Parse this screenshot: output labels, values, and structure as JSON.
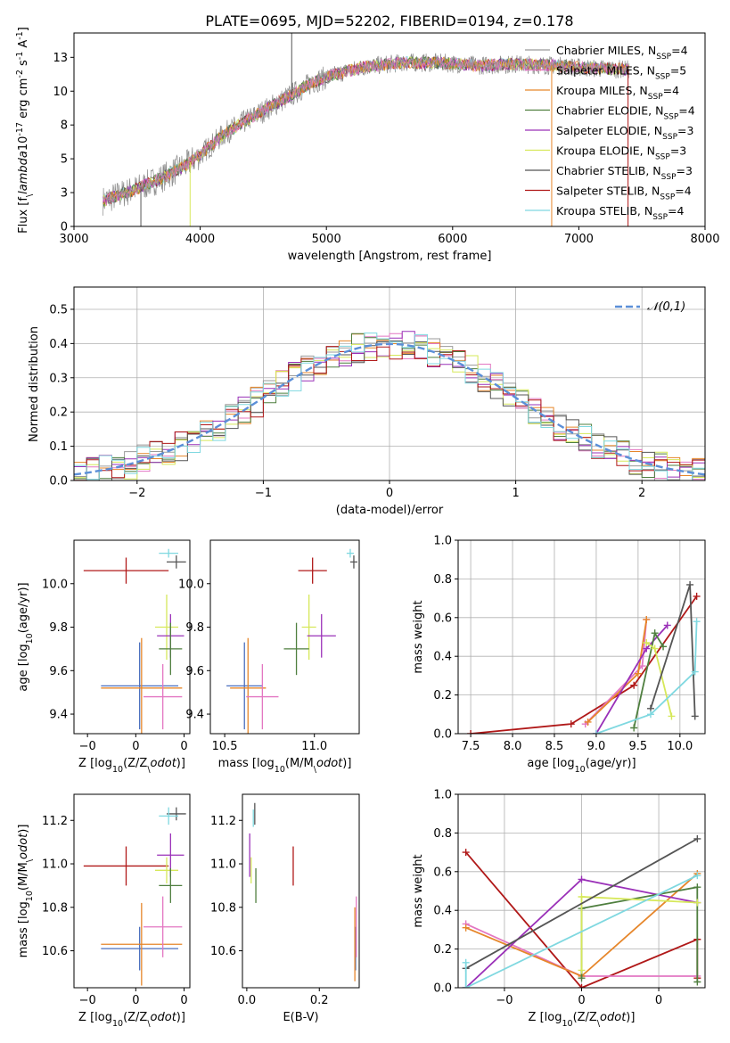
{
  "figure": {
    "title": "PLATE=0695, MJD=52202, FIBERID=0194, z=0.178"
  },
  "legend_spectrum": [
    {
      "name": "Chabrier MILES, N$_{SSP}$=4",
      "main": "Chabrier MILES, N",
      "sub": "SSP",
      "tail": "=4",
      "color": "#9a9a9a"
    },
    {
      "name": "Salpeter MILES, N$_{SSP}$=5",
      "main": "Salpeter MILES, N",
      "sub": "SSP",
      "tail": "=5",
      "color": "#e377c2"
    },
    {
      "name": "Kroupa MILES, N$_{SSP}$=4",
      "main": "Kroupa MILES, N",
      "sub": "SSP",
      "tail": "=4",
      "color": "#e6862a"
    },
    {
      "name": "Chabrier ELODIE, N$_{SSP}$=4",
      "main": "Chabrier ELODIE, N",
      "sub": "SSP",
      "tail": "=4",
      "color": "#4f7f3f"
    },
    {
      "name": "Salpeter ELODIE, N$_{SSP}$=3",
      "main": "Salpeter ELODIE, N",
      "sub": "SSP",
      "tail": "=3",
      "color": "#9a30b8"
    },
    {
      "name": "Kroupa ELODIE, N$_{SSP}$=3",
      "main": "Kroupa ELODIE, N",
      "sub": "SSP",
      "tail": "=3",
      "color": "#d6e85a"
    },
    {
      "name": "Chabrier STELIB, N$_{SSP}$=3",
      "main": "Chabrier STELIB, N",
      "sub": "SSP",
      "tail": "=3",
      "color": "#555555"
    },
    {
      "name": "Salpeter STELIB, N$_{SSP}$=4",
      "main": "Salpeter STELIB, N",
      "sub": "SSP",
      "tail": "=4",
      "color": "#b01818"
    },
    {
      "name": "Kroupa STELIB, N$_{SSP}$=4",
      "main": "Kroupa STELIB, N",
      "sub": "SSP",
      "tail": "=4",
      "color": "#7fd8e0"
    }
  ],
  "chart_data": [
    {
      "type": "line",
      "id": "spectrum",
      "title": "PLATE=0695, MJD=52202, FIBERID=0194, z=0.178",
      "xlabel": "wavelength [Angstrom, rest frame]",
      "ylabel": "Flux [f$_\\lambda$10$^{-17}$ erg cm$^{-2}$ s$^{-1}$ A$^{-1}$]",
      "xlim": [
        3000,
        8000
      ],
      "ylim": [
        0,
        14.3
      ],
      "xticks": [
        3000,
        4000,
        5000,
        6000,
        7000,
        8000
      ],
      "yticks": [
        0.0,
        2.5,
        5.0,
        7.5,
        10.0,
        12.5
      ],
      "legend_position": "upper right",
      "x_range_data": [
        3230,
        7400
      ],
      "continuum_x": [
        3230,
        3500,
        3700,
        3900,
        4000,
        4200,
        4400,
        4700,
        4900,
        5100,
        5300,
        5600,
        5900,
        6200,
        6500,
        6800,
        7100,
        7400
      ],
      "continuum_y": [
        1.9,
        2.8,
        3.6,
        4.6,
        5.3,
        6.9,
        8.0,
        9.6,
        10.7,
        11.3,
        11.8,
        12.1,
        12.1,
        11.9,
        12.0,
        11.9,
        11.7,
        11.6
      ],
      "spikes": [
        {
          "x": 3530,
          "y": 0,
          "color": "#555555"
        },
        {
          "x": 3920,
          "y": 0,
          "color": "#d6e85a"
        },
        {
          "x": 4725,
          "y": 14.3,
          "color": "#555555"
        },
        {
          "x": 6785,
          "y": 0,
          "color": "#e6862a"
        },
        {
          "x": 7390,
          "y": 0,
          "color": "#b01818"
        }
      ]
    },
    {
      "type": "area",
      "id": "residuals",
      "xlabel": "(data-model)/error",
      "ylabel": "Normed distribution",
      "xlim": [
        -2.5,
        2.5
      ],
      "ylim": [
        0,
        0.565
      ],
      "xticks": [
        -2,
        -1,
        0,
        1,
        2
      ],
      "yticks": [
        0.0,
        0.1,
        0.2,
        0.3,
        0.4,
        0.5
      ],
      "grid": true,
      "legend": "$\\mathcal{N}(0,1)$",
      "legend_position": "upper right",
      "gaussian": {
        "mean": 0,
        "sigma": 1,
        "color": "#5b8fd8"
      },
      "bin_width": 0.1
    },
    {
      "type": "scatter",
      "id": "age_vs_Z",
      "xlabel": "Z [log$_{10}$(Z/Z$_\\odot$)]",
      "ylabel": "age  [log$_{10}$(age/yr)]",
      "xlim": [
        -0.32,
        0.28
      ],
      "ylim": [
        9.31,
        10.2
      ],
      "xticks": [
        -0.25,
        0.0,
        0.25
      ],
      "yticks": [
        9.4,
        9.6,
        9.8,
        10.0
      ],
      "points": [
        {
          "x": -0.05,
          "y": 10.06,
          "xerr": 0.22,
          "yerr": 0.06,
          "color": "#b01818"
        },
        {
          "x": 0.21,
          "y": 10.1,
          "xerr": 0.05,
          "yerr": 0.03,
          "color": "#555555"
        },
        {
          "x": 0.17,
          "y": 10.14,
          "xerr": 0.05,
          "yerr": 0.02,
          "color": "#7fd8e0"
        },
        {
          "x": 0.16,
          "y": 9.8,
          "xerr": 0.06,
          "yerr": 0.15,
          "color": "#d6e85a"
        },
        {
          "x": 0.18,
          "y": 9.76,
          "xerr": 0.07,
          "yerr": 0.1,
          "color": "#9a30b8"
        },
        {
          "x": 0.18,
          "y": 9.7,
          "xerr": 0.06,
          "yerr": 0.12,
          "color": "#4f7f3f"
        },
        {
          "x": 0.02,
          "y": 9.53,
          "xerr": 0.2,
          "yerr": 0.2,
          "color": "#4a6fbf"
        },
        {
          "x": 0.03,
          "y": 9.52,
          "xerr": 0.21,
          "yerr": 0.23,
          "color": "#e6862a"
        },
        {
          "x": 0.14,
          "y": 9.48,
          "xerr": 0.1,
          "yerr": 0.15,
          "color": "#e377c2"
        }
      ]
    },
    {
      "type": "scatter",
      "id": "age_vs_mass",
      "xlabel": "mass [log$_{10}$(M/M$_\\odot$)]",
      "ylabel": "",
      "xlim": [
        10.42,
        11.25
      ],
      "ylim": [
        9.31,
        10.2
      ],
      "xticks": [
        10.5,
        11.0
      ],
      "yticks": [
        9.4,
        9.6,
        9.8,
        10.0
      ],
      "points": [
        {
          "x": 10.99,
          "y": 10.06,
          "xerr": 0.08,
          "yerr": 0.06,
          "color": "#b01818"
        },
        {
          "x": 11.22,
          "y": 10.1,
          "xerr": 0.02,
          "yerr": 0.03,
          "color": "#555555"
        },
        {
          "x": 11.2,
          "y": 10.14,
          "xerr": 0.02,
          "yerr": 0.02,
          "color": "#7fd8e0"
        },
        {
          "x": 10.97,
          "y": 9.8,
          "xerr": 0.04,
          "yerr": 0.15,
          "color": "#d6e85a"
        },
        {
          "x": 11.04,
          "y": 9.76,
          "xerr": 0.08,
          "yerr": 0.1,
          "color": "#9a30b8"
        },
        {
          "x": 10.9,
          "y": 9.7,
          "xerr": 0.07,
          "yerr": 0.12,
          "color": "#4f7f3f"
        },
        {
          "x": 10.61,
          "y": 9.53,
          "xerr": 0.1,
          "yerr": 0.2,
          "color": "#4a6fbf"
        },
        {
          "x": 10.63,
          "y": 9.52,
          "xerr": 0.1,
          "yerr": 0.23,
          "color": "#e6862a"
        },
        {
          "x": 10.71,
          "y": 9.48,
          "xerr": 0.09,
          "yerr": 0.15,
          "color": "#e377c2"
        }
      ]
    },
    {
      "type": "line",
      "id": "massweight_vs_age",
      "xlabel": "age  [log$_{10}$(age/yr)]",
      "ylabel": "mass weight",
      "xlim": [
        7.35,
        10.3
      ],
      "ylim": [
        0,
        1.0
      ],
      "xticks": [
        7.5,
        8.0,
        8.5,
        9.0,
        9.5,
        10.0
      ],
      "yticks": [
        0.0,
        0.2,
        0.4,
        0.6,
        0.8,
        1.0
      ],
      "grid": true,
      "series": [
        {
          "color": "#b01818",
          "x": [
            7.5,
            8.7,
            9.45,
            10.2
          ],
          "y": [
            0.0,
            0.05,
            0.25,
            0.71
          ]
        },
        {
          "color": "#e377c2",
          "x": [
            8.87,
            9.55,
            9.6
          ],
          "y": [
            0.05,
            0.35,
            0.59
          ]
        },
        {
          "color": "#e6862a",
          "x": [
            8.9,
            9.5,
            9.6
          ],
          "y": [
            0.06,
            0.31,
            0.59
          ]
        },
        {
          "color": "#9a30b8",
          "x": [
            9.0,
            9.6,
            9.85
          ],
          "y": [
            0.0,
            0.44,
            0.56
          ]
        },
        {
          "color": "#4f7f3f",
          "x": [
            9.45,
            9.7,
            9.8
          ],
          "y": [
            0.03,
            0.52,
            0.45
          ]
        },
        {
          "color": "#d6e85a",
          "x": [
            9.6,
            9.7,
            9.9
          ],
          "y": [
            0.47,
            0.44,
            0.09
          ]
        },
        {
          "color": "#555555",
          "x": [
            9.65,
            10.12,
            10.18
          ],
          "y": [
            0.13,
            0.77,
            0.09
          ]
        },
        {
          "color": "#7fd8e0",
          "x": [
            9.0,
            9.65,
            10.18,
            10.2
          ],
          "y": [
            0.0,
            0.1,
            0.32,
            0.58
          ]
        }
      ]
    },
    {
      "type": "scatter",
      "id": "mass_vs_Z",
      "xlabel": "Z [log$_{10}$(Z/Z$_\\odot$)]",
      "ylabel": "mass [log$_{10}$(M/M$_\\odot$)]",
      "xlim": [
        -0.32,
        0.28
      ],
      "ylim": [
        10.43,
        11.32
      ],
      "xticks": [
        -0.25,
        0.0,
        0.25
      ],
      "yticks": [
        10.6,
        10.8,
        11.0,
        11.2
      ],
      "points": [
        {
          "x": -0.05,
          "y": 10.99,
          "xerr": 0.22,
          "yerr": 0.09,
          "color": "#b01818"
        },
        {
          "x": 0.21,
          "y": 11.23,
          "xerr": 0.05,
          "yerr": 0.03,
          "color": "#555555"
        },
        {
          "x": 0.17,
          "y": 11.22,
          "xerr": 0.05,
          "yerr": 0.04,
          "color": "#7fd8e0"
        },
        {
          "x": 0.16,
          "y": 10.97,
          "xerr": 0.06,
          "yerr": 0.06,
          "color": "#d6e85a"
        },
        {
          "x": 0.18,
          "y": 11.04,
          "xerr": 0.07,
          "yerr": 0.1,
          "color": "#9a30b8"
        },
        {
          "x": 0.18,
          "y": 10.9,
          "xerr": 0.06,
          "yerr": 0.08,
          "color": "#4f7f3f"
        },
        {
          "x": 0.02,
          "y": 10.61,
          "xerr": 0.2,
          "yerr": 0.1,
          "color": "#4a6fbf"
        },
        {
          "x": 0.03,
          "y": 10.63,
          "xerr": 0.21,
          "yerr": 0.19,
          "color": "#e6862a"
        },
        {
          "x": 0.14,
          "y": 10.71,
          "xerr": 0.1,
          "yerr": 0.14,
          "color": "#e377c2"
        }
      ]
    },
    {
      "type": "scatter",
      "id": "mass_vs_EBV",
      "xlabel": "E(B-V)",
      "ylabel": "",
      "xlim": [
        -0.012,
        0.31
      ],
      "ylim": [
        10.43,
        11.32
      ],
      "xticks": [
        0.0,
        0.2
      ],
      "yticks": [
        10.6,
        10.8,
        11.0,
        11.2
      ],
      "points": [
        {
          "x": 0.128,
          "y": 10.99,
          "yerr": 0.09,
          "color": "#b01818"
        },
        {
          "x": 0.022,
          "y": 11.23,
          "yerr": 0.05,
          "color": "#555555"
        },
        {
          "x": 0.018,
          "y": 11.21,
          "yerr": 0.04,
          "color": "#7fd8e0"
        },
        {
          "x": 0.012,
          "y": 10.97,
          "yerr": 0.06,
          "color": "#d6e85a"
        },
        {
          "x": 0.008,
          "y": 11.04,
          "yerr": 0.1,
          "color": "#9a30b8"
        },
        {
          "x": 0.025,
          "y": 10.9,
          "yerr": 0.08,
          "color": "#4f7f3f"
        },
        {
          "x": 0.3,
          "y": 10.61,
          "yerr": 0.1,
          "color": "#4a6fbf"
        },
        {
          "x": 0.298,
          "y": 10.63,
          "yerr": 0.17,
          "color": "#e6862a"
        },
        {
          "x": 0.302,
          "y": 10.71,
          "yerr": 0.14,
          "color": "#e377c2"
        }
      ]
    },
    {
      "type": "line",
      "id": "massweight_vs_Z",
      "xlabel": "Z [log$_{10}$(Z/Z$_\\odot$)]",
      "ylabel": "mass weight",
      "xlim": [
        -0.32,
        0.32
      ],
      "ylim": [
        0,
        1.0
      ],
      "xticks": [
        -0.2,
        0.0,
        0.2
      ],
      "yticks": [
        0.0,
        0.2,
        0.4,
        0.6,
        0.8,
        1.0
      ],
      "grid": true,
      "series": [
        {
          "color": "#b01818",
          "x": [
            -0.3,
            0.0,
            0.3,
            0.3
          ],
          "y": [
            0.7,
            0.0,
            0.25,
            0.05
          ]
        },
        {
          "color": "#e377c2",
          "x": [
            -0.3,
            0.0,
            0.3
          ],
          "y": [
            0.33,
            0.06,
            0.06
          ]
        },
        {
          "color": "#e6862a",
          "x": [
            -0.3,
            0.0,
            0.3
          ],
          "y": [
            0.31,
            0.06,
            0.59
          ]
        },
        {
          "color": "#9a30b8",
          "x": [
            -0.3,
            0.0,
            0.3
          ],
          "y": [
            0.0,
            0.56,
            0.44
          ]
        },
        {
          "color": "#4f7f3f",
          "x": [
            0.0,
            0.0,
            0.3,
            0.3
          ],
          "y": [
            0.05,
            0.41,
            0.52,
            0.03
          ]
        },
        {
          "color": "#d6e85a",
          "x": [
            0.0,
            0.0,
            0.3
          ],
          "y": [
            0.09,
            0.47,
            0.44
          ]
        },
        {
          "color": "#555555",
          "x": [
            -0.3,
            0.3
          ],
          "y": [
            0.1,
            0.77
          ]
        },
        {
          "color": "#7fd8e0",
          "x": [
            -0.3,
            -0.3,
            0.3
          ],
          "y": [
            0.13,
            0.0,
            0.58
          ]
        }
      ]
    }
  ]
}
